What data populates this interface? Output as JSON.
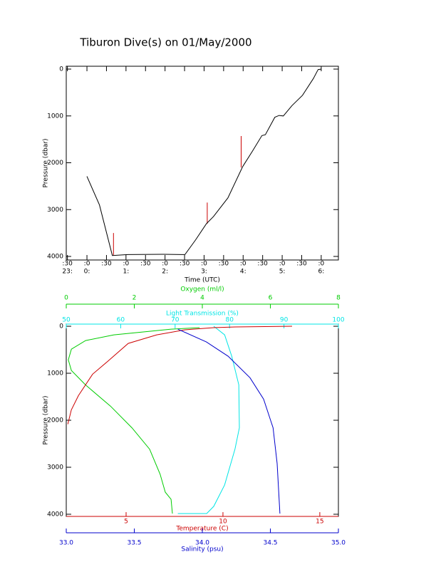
{
  "chart_data": [
    {
      "type": "line",
      "title": "Tiburon Dive(s) on 01/May/2000",
      "y_label": "Pressure (dbar)",
      "x_label": "Time (UTC)",
      "y_reversed": true,
      "ylim": [
        -61,
        4076
      ],
      "yticks": [
        0,
        1000,
        2000,
        3000,
        4000
      ],
      "xlim": [
        23.47,
        30.44
      ],
      "xticks": [
        {
          "value": 23.5,
          "label": ":30"
        },
        {
          "value": 24,
          "label": ":0"
        },
        {
          "value": 24.5,
          "label": ":30"
        },
        {
          "value": 25,
          "label": ":0"
        },
        {
          "value": 25.5,
          "label": ":30"
        },
        {
          "value": 26,
          "label": ":0"
        },
        {
          "value": 26.5,
          "label": ":30"
        },
        {
          "value": 27,
          "label": ":0"
        },
        {
          "value": 27.5,
          "label": ":30"
        },
        {
          "value": 28,
          "label": ":0"
        },
        {
          "value": 28.5,
          "label": ":30"
        },
        {
          "value": 29,
          "label": ":0"
        },
        {
          "value": 29.5,
          "label": ":30"
        },
        {
          "value": 30,
          "label": ":0"
        }
      ],
      "hour_labels": [
        {
          "value": 23.5,
          "label": "23:"
        },
        {
          "value": 24,
          "label": "0:"
        },
        {
          "value": 25,
          "label": "1:"
        },
        {
          "value": 26,
          "label": "2:"
        },
        {
          "value": 27,
          "label": "3:"
        },
        {
          "value": 28,
          "label": "4:"
        },
        {
          "value": 29,
          "label": "5:"
        },
        {
          "value": 30,
          "label": "6:"
        }
      ],
      "series": [
        {
          "color": "#cc0000",
          "x": [
            24.68,
            24.68,
            null,
            27.08,
            27.08,
            null,
            27.95,
            27.95
          ],
          "values": [
            3980,
            3500,
            null,
            3300,
            2850,
            null,
            2100,
            1430
          ]
        },
        {
          "color": "#000000",
          "x": [
            24.0,
            24.32,
            24.65,
            25.05,
            25.96,
            26.51,
            26.78,
            27.06,
            27.24,
            27.61,
            27.99,
            28.24,
            28.48,
            28.57,
            28.81,
            28.92,
            29.03,
            29.25,
            29.52,
            29.8,
            29.92,
            30.0
          ],
          "values": [
            2290,
            2900,
            3980,
            3960,
            3955,
            3960,
            3650,
            3300,
            3150,
            2750,
            2080,
            1750,
            1420,
            1400,
            1030,
            990,
            1000,
            780,
            560,
            200,
            10,
            0
          ]
        }
      ]
    },
    {
      "type": "profile",
      "y_label": "Pressure (dbar)",
      "y_reversed": true,
      "ylim": [
        -46,
        4046
      ],
      "yticks": [
        0,
        1000,
        2000,
        3000,
        4000
      ],
      "axes": [
        {
          "label": "Oxygen (ml/l)",
          "color": "#00cc00",
          "xlim": [
            0,
            8
          ],
          "xticks": [
            0,
            2,
            4,
            6,
            8
          ],
          "values": [
            3.12,
            3.08,
            2.91,
            2.76,
            2.45,
            1.93,
            1.3,
            0.57,
            0.15,
            0.06,
            0.15,
            0.57,
            1.4,
            2.24,
            3.08,
            3.92
          ],
          "pressure": [
            3985,
            3680,
            3530,
            3150,
            2615,
            2160,
            1700,
            1250,
            940,
            715,
            487,
            304,
            183,
            122,
            61,
            30
          ]
        },
        {
          "label": "Light Transmission (%)",
          "color": "#00e5e5",
          "xlim": [
            50,
            100
          ],
          "xticks": [
            50,
            60,
            70,
            80,
            90,
            100
          ],
          "values": [
            77.1,
            79.1,
            80.4,
            81.7,
            81.8,
            81.0,
            79.1,
            77.1,
            75.8,
            70.5
          ],
          "pressure": [
            0,
            183,
            639,
            1247,
            2160,
            2615,
            3376,
            3833,
            3985,
            3985
          ]
        },
        {
          "label": "Temperature (C)",
          "color": "#cc0000",
          "xlim": [
            1.91,
            15.96
          ],
          "xticks": [
            5,
            10,
            15
          ],
          "values": [
            1.99,
            2.17,
            2.54,
            3.27,
            4.01,
            5.11,
            6.58,
            8.05,
            9.52,
            10.63,
            13.57
          ],
          "pressure": [
            2084,
            1780,
            1475,
            1019,
            760,
            365,
            183,
            76,
            30,
            15,
            0
          ]
        },
        {
          "label": "Salinity (psu)",
          "color": "#0000cc",
          "xlim": [
            33.0,
            35.0
          ],
          "xticks": [
            {
              "value": 33.0,
              "label": "33.0"
            },
            33.5,
            {
              "value": 34.0,
              "label": "34.0"
            },
            34.5,
            {
              "value": 35.0,
              "label": "35.0"
            }
          ],
          "values": [
            33.82,
            34.03,
            34.19,
            34.35,
            34.45,
            34.52,
            34.55,
            34.57
          ],
          "pressure": [
            61,
            335,
            639,
            1095,
            1551,
            2160,
            2920,
            3985
          ]
        }
      ]
    }
  ]
}
